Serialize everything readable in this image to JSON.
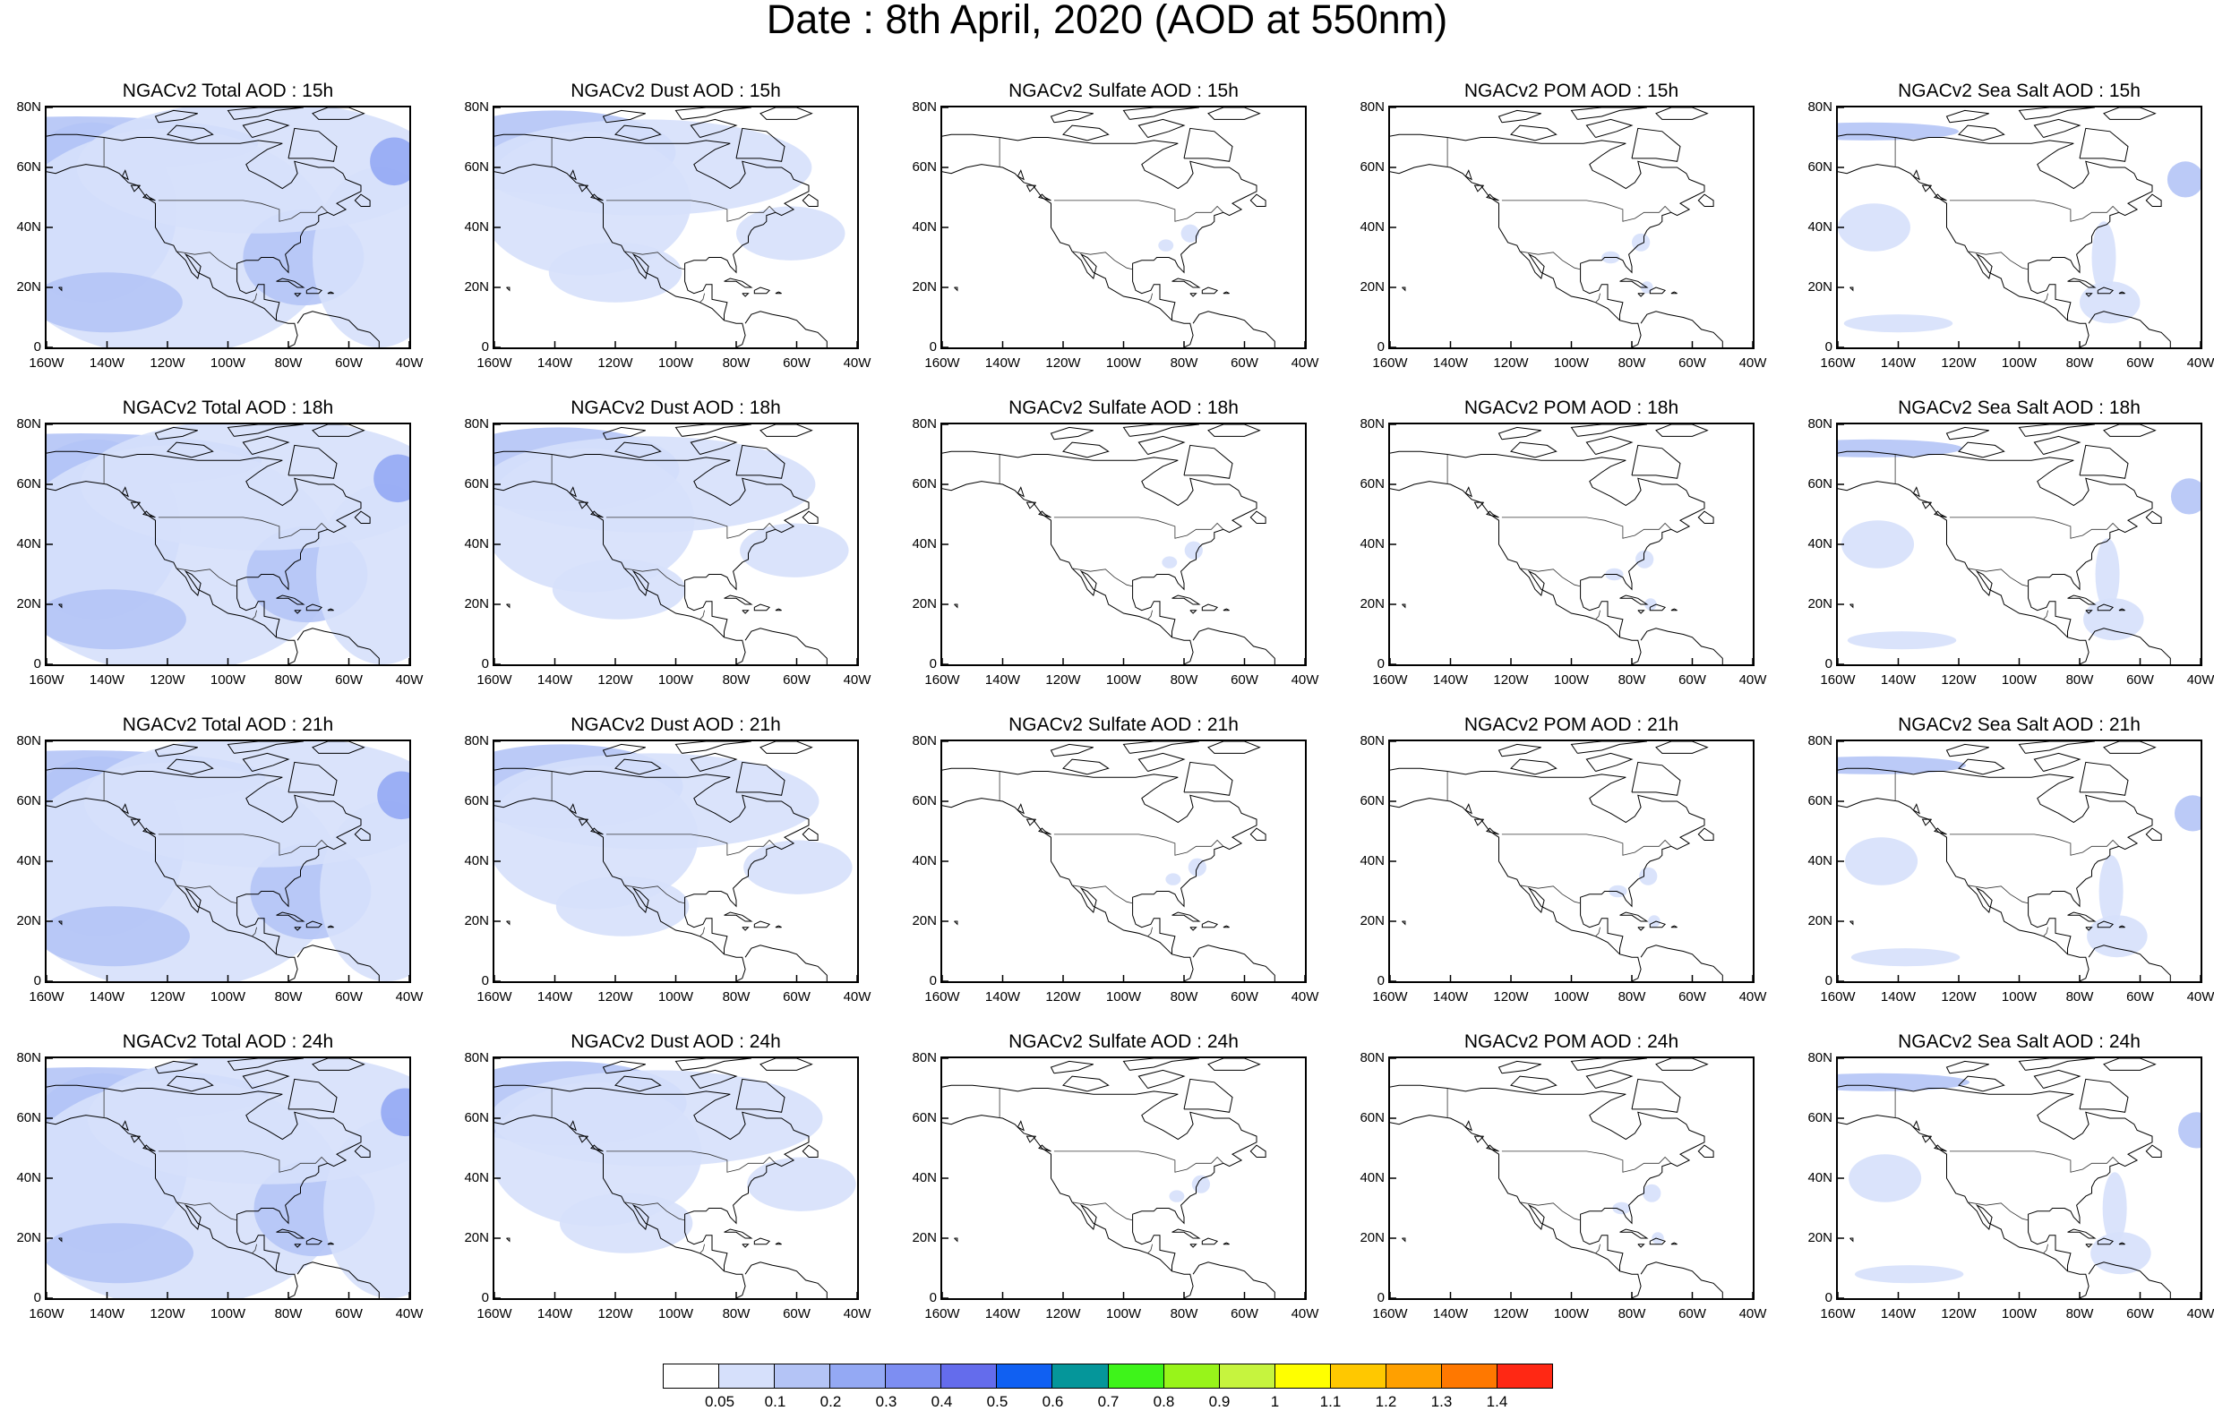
{
  "title": "Date : 8th April, 2020 (AOD at 550nm)",
  "lat_labels": [
    "80N",
    "60N",
    "40N",
    "20N",
    "0"
  ],
  "lon_labels": [
    "160W",
    "140W",
    "120W",
    "100W",
    "80W",
    "60W",
    "40W"
  ],
  "panels": [
    {
      "title": "NGACv2 Total AOD : 15h",
      "species": "total",
      "hour": 15
    },
    {
      "title": "NGACv2 Dust AOD : 15h",
      "species": "dust",
      "hour": 15
    },
    {
      "title": "NGACv2 Sulfate AOD : 15h",
      "species": "sulfate",
      "hour": 15
    },
    {
      "title": "NGACv2 POM AOD : 15h",
      "species": "pom",
      "hour": 15
    },
    {
      "title": "NGACv2 Sea Salt AOD : 15h",
      "species": "seasalt",
      "hour": 15
    },
    {
      "title": "NGACv2 Total AOD : 18h",
      "species": "total",
      "hour": 18
    },
    {
      "title": "NGACv2 Dust AOD : 18h",
      "species": "dust",
      "hour": 18
    },
    {
      "title": "NGACv2 Sulfate AOD : 18h",
      "species": "sulfate",
      "hour": 18
    },
    {
      "title": "NGACv2 POM AOD : 18h",
      "species": "pom",
      "hour": 18
    },
    {
      "title": "NGACv2 Sea Salt AOD : 18h",
      "species": "seasalt",
      "hour": 18
    },
    {
      "title": "NGACv2 Total AOD : 21h",
      "species": "total",
      "hour": 21
    },
    {
      "title": "NGACv2 Dust AOD : 21h",
      "species": "dust",
      "hour": 21
    },
    {
      "title": "NGACv2 Sulfate AOD : 21h",
      "species": "sulfate",
      "hour": 21
    },
    {
      "title": "NGACv2 POM AOD : 21h",
      "species": "pom",
      "hour": 21
    },
    {
      "title": "NGACv2 Sea Salt AOD : 21h",
      "species": "seasalt",
      "hour": 21
    },
    {
      "title": "NGACv2 Total AOD : 24h",
      "species": "total",
      "hour": 24
    },
    {
      "title": "NGACv2 Dust AOD : 24h",
      "species": "dust",
      "hour": 24
    },
    {
      "title": "NGACv2 Sulfate AOD : 24h",
      "species": "sulfate",
      "hour": 24
    },
    {
      "title": "NGACv2 POM AOD : 24h",
      "species": "pom",
      "hour": 24
    },
    {
      "title": "NGACv2 Sea Salt  AOD : 24h",
      "species": "seasalt",
      "hour": 24
    }
  ],
  "colorbar": {
    "colors": [
      "#ffffff",
      "#d6e0fb",
      "#b4c4f6",
      "#94a9f4",
      "#7d8ef2",
      "#646cec",
      "#1060f2",
      "#05969a",
      "#3ef41a",
      "#98f41a",
      "#c6f43e",
      "#ffff00",
      "#ffc800",
      "#ffa000",
      "#ff7800",
      "#ff2814"
    ],
    "labels": [
      "0.05",
      "0.1",
      "0.2",
      "0.3",
      "0.4",
      "0.5",
      "0.6",
      "0.7",
      "0.8",
      "0.9",
      "1",
      "1.1",
      "1.2",
      "1.3",
      "1.4"
    ]
  }
}
